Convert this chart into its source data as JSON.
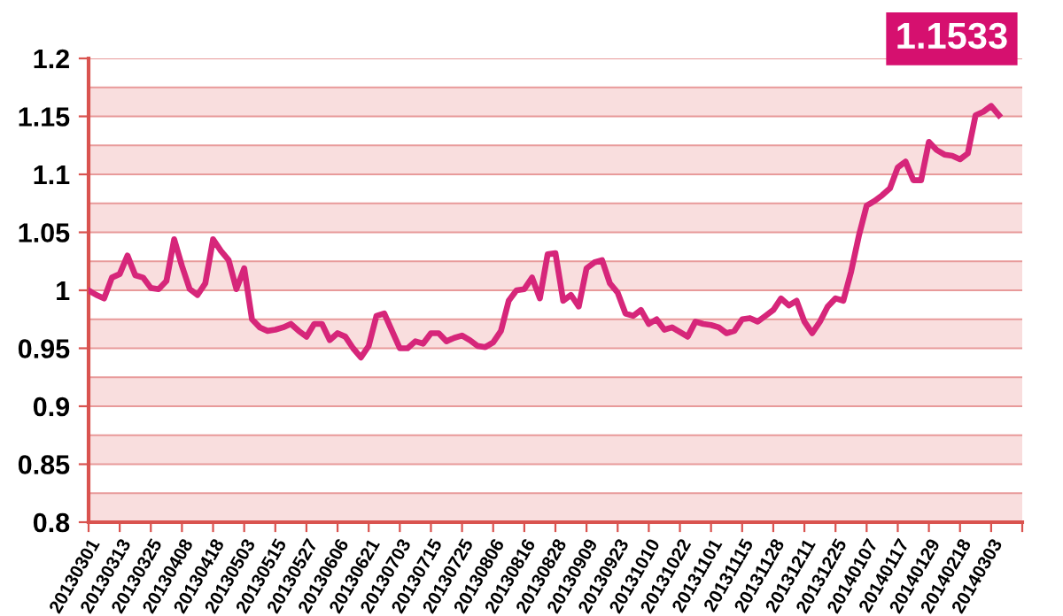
{
  "chart_data": {
    "type": "line",
    "categories": [
      "20130301",
      null,
      null,
      null,
      "20130313",
      null,
      null,
      null,
      "20130325",
      null,
      null,
      null,
      "20130408",
      null,
      null,
      null,
      "20130418",
      null,
      null,
      null,
      "20130503",
      null,
      null,
      null,
      "20130515",
      null,
      null,
      null,
      "20130527",
      null,
      null,
      null,
      "20130606",
      null,
      null,
      null,
      "20130621",
      null,
      null,
      null,
      "20130703",
      null,
      null,
      null,
      "20130715",
      null,
      null,
      null,
      "20130725",
      null,
      null,
      null,
      "20130806",
      null,
      null,
      null,
      "20130816",
      null,
      null,
      null,
      "20130828",
      null,
      null,
      null,
      "20130909",
      null,
      null,
      null,
      "20130923",
      null,
      null,
      null,
      "20131010",
      null,
      null,
      null,
      "20131022",
      null,
      null,
      null,
      "20131101",
      null,
      null,
      null,
      "20131115",
      null,
      null,
      null,
      "20131128",
      null,
      null,
      null,
      "20131211",
      null,
      null,
      null,
      "20131225",
      null,
      null,
      null,
      "20140107",
      null,
      null,
      null,
      "20140117",
      null,
      null,
      null,
      "20140129",
      null,
      null,
      null,
      "20140218",
      null,
      null,
      null,
      "20140303",
      null,
      null,
      null,
      null
    ],
    "series": [
      {
        "color": "#d6267a",
        "values": [
          1.0,
          0.996,
          0.993,
          1.011,
          1.014,
          1.03,
          1.013,
          1.011,
          1.002,
          1.001,
          1.008,
          1.044,
          1.021,
          1.001,
          0.996,
          1.006,
          1.044,
          1.034,
          1.026,
          1.001,
          1.019,
          0.975,
          0.968,
          0.965,
          0.966,
          0.968,
          0.971,
          0.965,
          0.96,
          0.971,
          0.971,
          0.957,
          0.963,
          0.96,
          0.95,
          0.942,
          0.952,
          0.978,
          0.98,
          0.965,
          0.95,
          0.95,
          0.956,
          0.954,
          0.963,
          0.963,
          0.956,
          0.959,
          0.961,
          0.957,
          0.952,
          0.951,
          0.955,
          0.965,
          0.991,
          1.0,
          1.001,
          1.011,
          0.993,
          1.031,
          1.032,
          0.991,
          0.996,
          0.986,
          1.019,
          1.024,
          1.026,
          1.006,
          0.998,
          0.98,
          0.978,
          0.983,
          0.971,
          0.975,
          0.966,
          0.968,
          0.964,
          0.96,
          0.973,
          0.971,
          0.97,
          0.968,
          0.963,
          0.965,
          0.975,
          0.976,
          0.973,
          0.978,
          0.983,
          0.993,
          0.987,
          0.991,
          0.973,
          0.963,
          0.973,
          0.986,
          0.993,
          0.991,
          1.016,
          1.047,
          1.073,
          1.077,
          1.082,
          1.088,
          1.106,
          1.111,
          1.095,
          1.095,
          1.128,
          1.121,
          1.117,
          1.116,
          1.113,
          1.118,
          1.151,
          1.154,
          1.159,
          1.151,
          null,
          null,
          null
        ]
      }
    ],
    "ylim": [
      0.8,
      1.2
    ],
    "yticks": [
      0.8,
      0.85,
      0.9,
      0.95,
      1,
      1.05,
      1.1,
      1.15,
      1.2
    ],
    "grid": "y",
    "bands": [
      {
        "axis": "y",
        "from": 0.8,
        "to": 0.825,
        "color": "#f9dede"
      },
      {
        "axis": "y",
        "from": 0.85,
        "to": 0.875,
        "color": "#f9dede"
      },
      {
        "axis": "y",
        "from": 0.9,
        "to": 0.925,
        "color": "#f9dede"
      },
      {
        "axis": "y",
        "from": 0.95,
        "to": 0.975,
        "color": "#f9dede"
      },
      {
        "axis": "y",
        "from": 1,
        "to": 1.025,
        "color": "#f9dede"
      },
      {
        "axis": "y",
        "from": 1.05,
        "to": 1.075,
        "color": "#f9dede"
      },
      {
        "axis": "y",
        "from": 1.1,
        "to": 1.125,
        "color": "#f9dede"
      },
      {
        "axis": "y",
        "from": 1.15,
        "to": 1.175,
        "color": "#f9dede"
      }
    ],
    "annotations": [
      "1.1533"
    ]
  }
}
